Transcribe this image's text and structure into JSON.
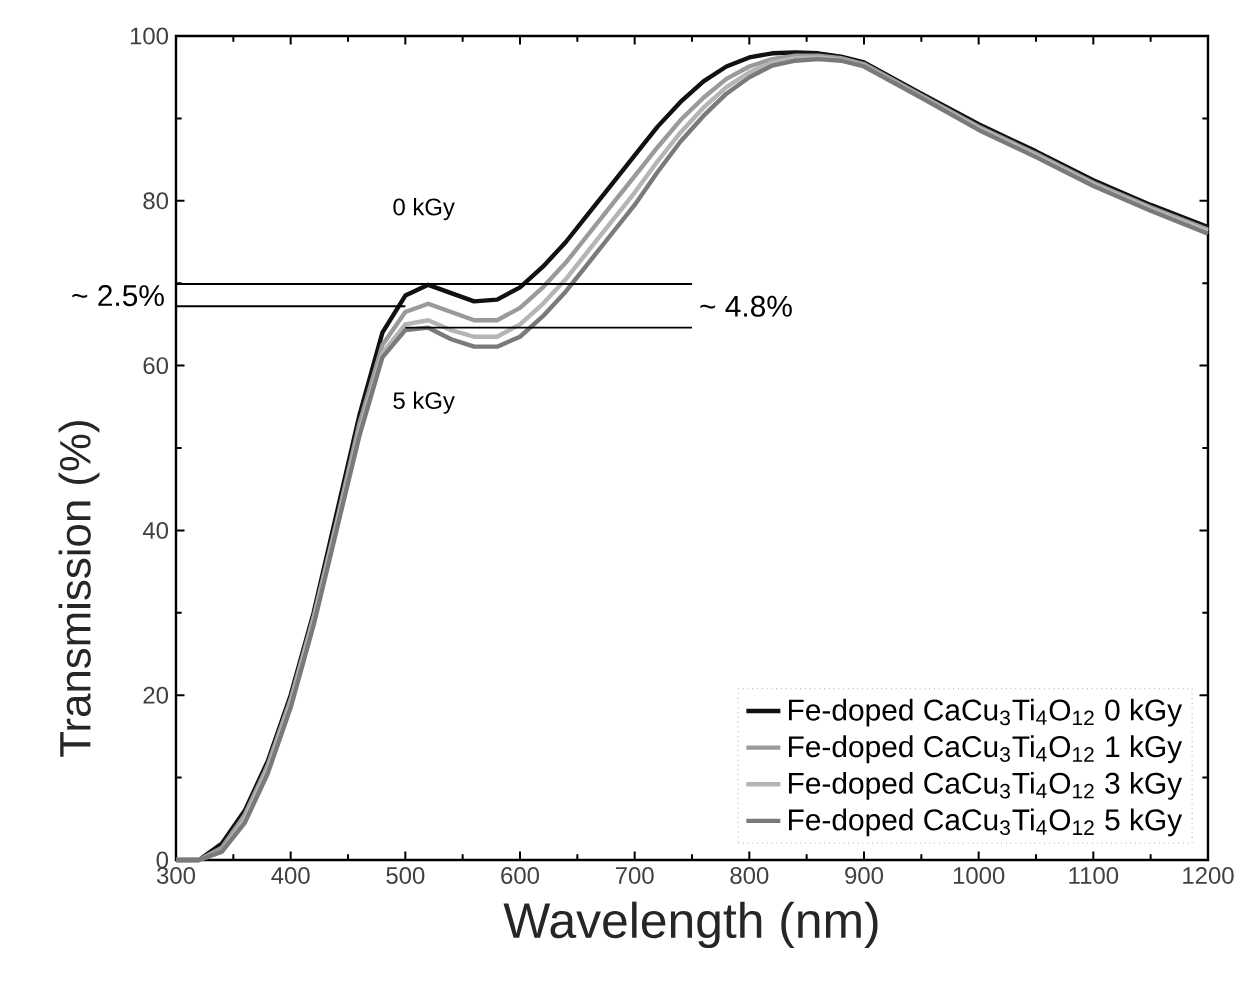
{
  "chart_data": {
    "type": "line",
    "xlabel": "Wavelength (nm)",
    "ylabel": "Transmission (%)",
    "x": [
      300,
      320,
      340,
      360,
      380,
      400,
      420,
      440,
      460,
      480,
      500,
      520,
      540,
      560,
      580,
      600,
      620,
      640,
      660,
      680,
      700,
      720,
      740,
      760,
      780,
      800,
      820,
      840,
      860,
      880,
      900,
      950,
      1000,
      1050,
      1100,
      1150,
      1200
    ],
    "series": [
      {
        "name": "Fe-doped CaCu$_{3}$Ti$_{4}$O$_{12}$ 0 kGy",
        "color": "#111111",
        "values": [
          0,
          0,
          2,
          6,
          12,
          20,
          30,
          42,
          54,
          64,
          68.5,
          69.8,
          68.8,
          67.8,
          68,
          69.5,
          72,
          75,
          78.5,
          82,
          85.5,
          89,
          92,
          94.5,
          96.3,
          97.4,
          97.9,
          98,
          97.9,
          97.5,
          96.8,
          93,
          89.3,
          86,
          82.5,
          79.5,
          76.8
        ]
      },
      {
        "name": "Fe-doped CaCu$_{3}$Ti$_{4}$O$_{12}$ 1 kGy",
        "color": "#9a9a9a",
        "values": [
          0,
          0,
          1.5,
          5.5,
          11.5,
          19.5,
          29.5,
          41,
          53,
          62.5,
          66.5,
          67.5,
          66.5,
          65.5,
          65.5,
          67,
          69.5,
          72.5,
          76,
          79.5,
          83,
          86.5,
          89.8,
          92.5,
          94.8,
          96.3,
          97.2,
          97.6,
          97.6,
          97.3,
          96.6,
          92.8,
          89,
          85.7,
          82.2,
          79.2,
          76.5
        ]
      },
      {
        "name": "Fe-doped CaCu$_{3}$Ti$_{4}$O$_{12}$ 3 kGy",
        "color": "#b5b5b5",
        "values": [
          0,
          0,
          1,
          5,
          11,
          19,
          29,
          40.5,
          52,
          61.5,
          65,
          65.5,
          64.3,
          63.5,
          63.5,
          65,
          67.5,
          70.5,
          74,
          77.5,
          81,
          84.8,
          88.3,
          91.3,
          93.8,
          95.6,
          96.8,
          97.3,
          97.4,
          97.1,
          96.4,
          92.6,
          88.8,
          85.5,
          82,
          79,
          76.3
        ]
      },
      {
        "name": "Fe-doped CaCu$_{3}$Ti$_{4}$O$_{12}$ 5 kGy",
        "color": "#7a7a7a",
        "values": [
          0,
          0,
          1,
          4.5,
          10.5,
          18.5,
          28.5,
          40,
          51.5,
          61,
          64.3,
          64.6,
          63.2,
          62.3,
          62.3,
          63.5,
          66,
          69,
          72.5,
          76,
          79.5,
          83.5,
          87.2,
          90.3,
          93,
          95,
          96.4,
          97,
          97.2,
          97,
          96.3,
          92.5,
          88.6,
          85.3,
          81.8,
          78.8,
          76
        ]
      },
      {
        "color": "#000000",
        "x": [
          300,
          750
        ],
        "values": [
          69.9,
          69.9
        ]
      },
      {
        "color": "#000000",
        "x": [
          300,
          500
        ],
        "values": [
          67.2,
          67.2
        ]
      },
      {
        "color": "#000000",
        "x": [
          500,
          750
        ],
        "values": [
          64.6,
          64.6
        ]
      }
    ],
    "annotations": [
      "0 kGy",
      "5 kGy",
      "~ 2.5%",
      "~ 4.8%"
    ],
    "xlim": [
      300,
      1200
    ],
    "xticks": [
      300,
      400,
      500,
      600,
      700,
      800,
      900,
      1000,
      1100,
      1200
    ],
    "ylim": [
      0,
      100
    ],
    "yticks": [
      0,
      20,
      40,
      60,
      80,
      100
    ],
    "legend": "bottom right",
    "grid": false,
    "marker": "none",
    "line_style": "solid"
  }
}
